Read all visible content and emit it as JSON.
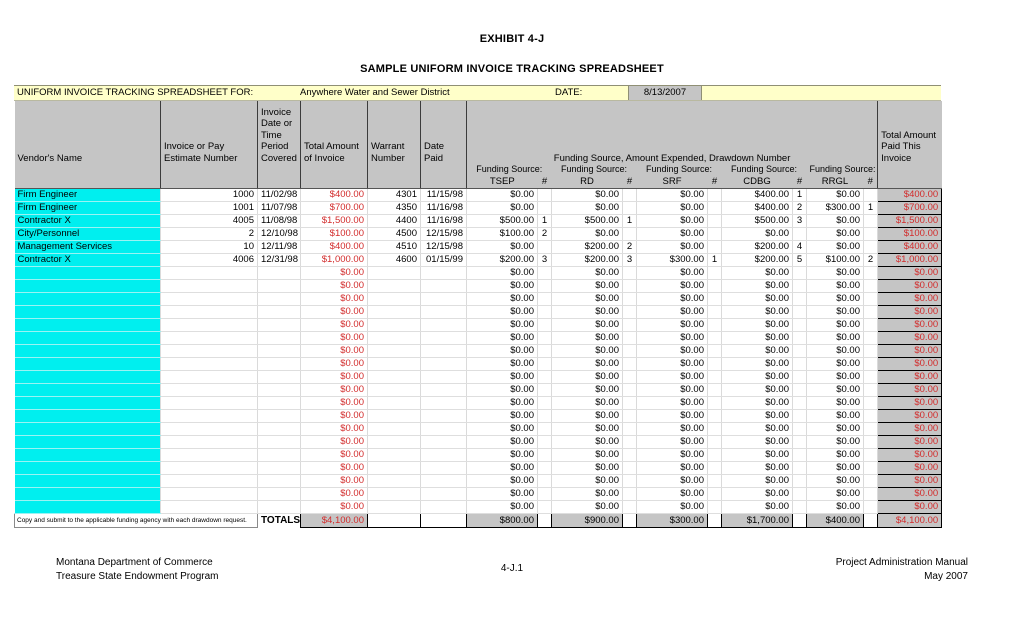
{
  "page": {
    "exhibit_title": "EXHIBIT 4-J",
    "subtitle": "SAMPLE UNIFORM INVOICE TRACKING SPREADSHEET"
  },
  "info_bar": {
    "label": "UNIFORM INVOICE TRACKING SPREADSHEET FOR:",
    "entity": "Anywhere Water and Sewer District",
    "date_label": "DATE:",
    "date_value": "8/13/2007"
  },
  "header": {
    "vendor": "Vendor's Name",
    "invoice_number": "Invoice or Pay Estimate Number",
    "invoice_date": "Invoice Date or Time Period Covered",
    "total_amount": "Total Amount of Invoice",
    "warrant": "Warrant Number",
    "date_paid": "Date Paid",
    "funding_group": "Funding Source, Amount Expended, Drawdown Number",
    "funding_source_label": "Funding Source:",
    "hash_label": "#",
    "funding_sources": [
      "TSEP",
      "RD",
      "SRF",
      "CDBG",
      "RRGL"
    ],
    "total_paid": "Total Amount Paid This Invoice"
  },
  "rows": [
    {
      "vendor": "Firm Engineer",
      "invoice_number": "1000",
      "invoice_date": "11/02/98",
      "total_amount": "$400.00",
      "warrant": "4301",
      "date_paid": "11/15/98",
      "fs": [
        {
          "amount": "$0.00",
          "num": ""
        },
        {
          "amount": "$0.00",
          "num": ""
        },
        {
          "amount": "$0.00",
          "num": ""
        },
        {
          "amount": "$400.00",
          "num": "1"
        },
        {
          "amount": "$0.00",
          "num": ""
        }
      ],
      "total_paid": "$400.00"
    },
    {
      "vendor": "Firm Engineer",
      "invoice_number": "1001",
      "invoice_date": "11/07/98",
      "total_amount": "$700.00",
      "warrant": "4350",
      "date_paid": "11/16/98",
      "fs": [
        {
          "amount": "$0.00",
          "num": ""
        },
        {
          "amount": "$0.00",
          "num": ""
        },
        {
          "amount": "$0.00",
          "num": ""
        },
        {
          "amount": "$400.00",
          "num": "2"
        },
        {
          "amount": "$300.00",
          "num": "1"
        }
      ],
      "total_paid": "$700.00"
    },
    {
      "vendor": "Contractor X",
      "invoice_number": "4005",
      "invoice_date": "11/08/98",
      "total_amount": "$1,500.00",
      "warrant": "4400",
      "date_paid": "11/16/98",
      "fs": [
        {
          "amount": "$500.00",
          "num": "1"
        },
        {
          "amount": "$500.00",
          "num": "1"
        },
        {
          "amount": "$0.00",
          "num": ""
        },
        {
          "amount": "$500.00",
          "num": "3"
        },
        {
          "amount": "$0.00",
          "num": ""
        }
      ],
      "total_paid": "$1,500.00"
    },
    {
      "vendor": "City/Personnel",
      "invoice_number": "2",
      "invoice_date": "12/10/98",
      "total_amount": "$100.00",
      "warrant": "4500",
      "date_paid": "12/15/98",
      "fs": [
        {
          "amount": "$100.00",
          "num": "2"
        },
        {
          "amount": "$0.00",
          "num": ""
        },
        {
          "amount": "$0.00",
          "num": ""
        },
        {
          "amount": "$0.00",
          "num": ""
        },
        {
          "amount": "$0.00",
          "num": ""
        }
      ],
      "total_paid": "$100.00"
    },
    {
      "vendor": "Management Services",
      "invoice_number": "10",
      "invoice_date": "12/11/98",
      "total_amount": "$400.00",
      "warrant": "4510",
      "date_paid": "12/15/98",
      "fs": [
        {
          "amount": "$0.00",
          "num": ""
        },
        {
          "amount": "$200.00",
          "num": "2"
        },
        {
          "amount": "$0.00",
          "num": ""
        },
        {
          "amount": "$200.00",
          "num": "4"
        },
        {
          "amount": "$0.00",
          "num": ""
        }
      ],
      "total_paid": "$400.00"
    },
    {
      "vendor": "Contractor X",
      "invoice_number": "4006",
      "invoice_date": "12/31/98",
      "total_amount": "$1,000.00",
      "warrant": "4600",
      "date_paid": "01/15/99",
      "fs": [
        {
          "amount": "$200.00",
          "num": "3"
        },
        {
          "amount": "$200.00",
          "num": "3"
        },
        {
          "amount": "$300.00",
          "num": "1"
        },
        {
          "amount": "$200.00",
          "num": "5"
        },
        {
          "amount": "$100.00",
          "num": "2"
        }
      ],
      "total_paid": "$1,000.00"
    }
  ],
  "empty_row_count": 19,
  "empty_row_template": {
    "vendor": "",
    "invoice_number": "",
    "invoice_date": "",
    "total_amount": "$0.00",
    "warrant": "",
    "date_paid": "",
    "fs": [
      {
        "amount": "$0.00",
        "num": ""
      },
      {
        "amount": "$0.00",
        "num": ""
      },
      {
        "amount": "$0.00",
        "num": ""
      },
      {
        "amount": "$0.00",
        "num": ""
      },
      {
        "amount": "$0.00",
        "num": ""
      }
    ],
    "total_paid": "$0.00"
  },
  "totals": {
    "note": "Copy and submit to the applicable funding agency with each drawdown request.",
    "label": "TOTALS",
    "total_amount": "$4,100.00",
    "fs": [
      "$800.00",
      "$900.00",
      "$300.00",
      "$1,700.00",
      "$400.00"
    ],
    "total_paid": "$4,100.00"
  },
  "footer": {
    "left_line1": "Montana Department of Commerce",
    "left_line2": "Treasure State Endowment Program",
    "center": "4-J.1",
    "right_line1": "Project Administration Manual",
    "right_line2": "May 2007"
  },
  "colors": {
    "highlight_yellow": "#FFFFC9",
    "header_gray": "#C5C5C5",
    "vendor_cyan": "#00EFEF",
    "amount_red": "#D22B2B"
  }
}
